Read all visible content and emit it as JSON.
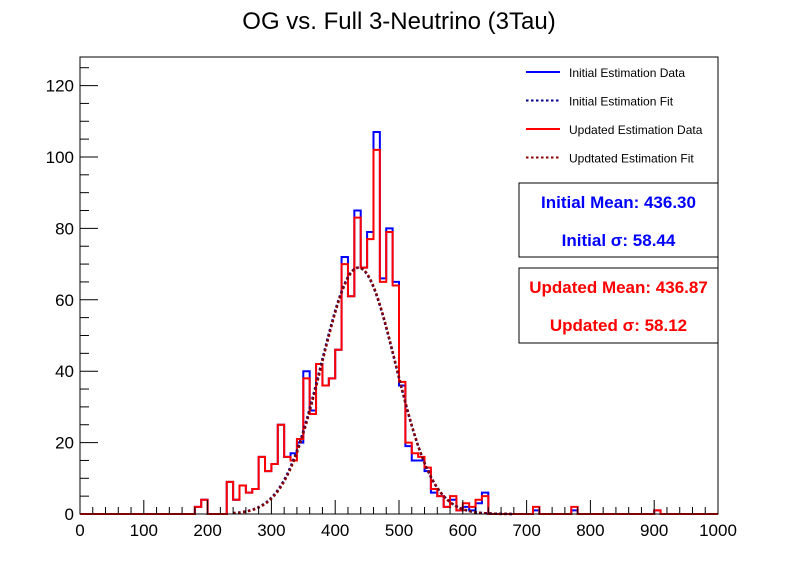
{
  "chart_data": {
    "type": "histogram-step",
    "title": "OG vs. Full 3-Neutrino (3Tau)",
    "xlim": [
      0,
      1000
    ],
    "ylim": [
      0,
      128
    ],
    "x_ticks": [
      0,
      100,
      200,
      300,
      400,
      500,
      600,
      700,
      800,
      900,
      1000
    ],
    "y_ticks": [
      0,
      20,
      40,
      60,
      80,
      100,
      120
    ],
    "bin_width": 10,
    "legend_position": "top-right",
    "legend": [
      {
        "label": "Initial Estimation Data",
        "color": "#0000ff",
        "style": "solid"
      },
      {
        "label": "Initial Estimation Fit",
        "color": "#00008b",
        "style": "dotted"
      },
      {
        "label": "Updated Estimation Data",
        "color": "#ff0000",
        "style": "solid"
      },
      {
        "label": "Updtated Estimation Fit",
        "color": "#8b0000",
        "style": "dotted"
      }
    ],
    "series": [
      {
        "name": "Initial Estimation Data",
        "color": "#0000ff",
        "bins": [
          [
            180,
            2
          ],
          [
            190,
            4
          ],
          [
            200,
            0
          ],
          [
            210,
            0
          ],
          [
            220,
            0
          ],
          [
            230,
            9
          ],
          [
            240,
            4
          ],
          [
            250,
            8
          ],
          [
            260,
            6
          ],
          [
            270,
            7
          ],
          [
            280,
            16
          ],
          [
            290,
            12
          ],
          [
            300,
            14
          ],
          [
            310,
            25
          ],
          [
            320,
            16
          ],
          [
            330,
            17
          ],
          [
            340,
            20
          ],
          [
            350,
            40
          ],
          [
            360,
            29
          ],
          [
            370,
            42
          ],
          [
            380,
            36
          ],
          [
            390,
            38
          ],
          [
            400,
            46
          ],
          [
            410,
            72
          ],
          [
            420,
            61
          ],
          [
            430,
            85
          ],
          [
            440,
            69
          ],
          [
            450,
            79
          ],
          [
            460,
            107
          ],
          [
            470,
            66
          ],
          [
            480,
            80
          ],
          [
            490,
            65
          ],
          [
            500,
            36
          ],
          [
            510,
            19
          ],
          [
            520,
            15
          ],
          [
            530,
            15
          ],
          [
            540,
            12
          ],
          [
            550,
            6
          ],
          [
            560,
            5
          ],
          [
            570,
            2
          ],
          [
            580,
            4
          ],
          [
            590,
            1
          ],
          [
            600,
            2
          ],
          [
            610,
            1
          ],
          [
            620,
            3
          ],
          [
            630,
            6
          ],
          [
            640,
            0
          ],
          [
            650,
            0
          ],
          [
            660,
            0
          ],
          [
            670,
            0
          ],
          [
            680,
            0
          ],
          [
            690,
            0
          ],
          [
            700,
            0
          ],
          [
            710,
            1
          ],
          [
            720,
            0
          ],
          [
            770,
            1
          ],
          [
            780,
            0
          ],
          [
            900,
            1
          ],
          [
            910,
            0
          ]
        ]
      },
      {
        "name": "Updated Estimation Data",
        "color": "#ff0000",
        "bins": [
          [
            180,
            2
          ],
          [
            190,
            4
          ],
          [
            200,
            0
          ],
          [
            210,
            0
          ],
          [
            220,
            0
          ],
          [
            230,
            9
          ],
          [
            240,
            4
          ],
          [
            250,
            8
          ],
          [
            260,
            6
          ],
          [
            270,
            7
          ],
          [
            280,
            16
          ],
          [
            290,
            12
          ],
          [
            300,
            14
          ],
          [
            310,
            25
          ],
          [
            320,
            16
          ],
          [
            330,
            15
          ],
          [
            340,
            21
          ],
          [
            350,
            38
          ],
          [
            360,
            28
          ],
          [
            370,
            42
          ],
          [
            380,
            36
          ],
          [
            390,
            38
          ],
          [
            400,
            46
          ],
          [
            410,
            70
          ],
          [
            420,
            61
          ],
          [
            430,
            83
          ],
          [
            440,
            69
          ],
          [
            450,
            77
          ],
          [
            460,
            102
          ],
          [
            470,
            65
          ],
          [
            480,
            79
          ],
          [
            490,
            64
          ],
          [
            500,
            37
          ],
          [
            510,
            20
          ],
          [
            520,
            17
          ],
          [
            530,
            16
          ],
          [
            540,
            13
          ],
          [
            550,
            7
          ],
          [
            560,
            5
          ],
          [
            570,
            2
          ],
          [
            580,
            5
          ],
          [
            590,
            1
          ],
          [
            600,
            3
          ],
          [
            610,
            2
          ],
          [
            620,
            4
          ],
          [
            630,
            5
          ],
          [
            640,
            0
          ],
          [
            650,
            0
          ],
          [
            660,
            0
          ],
          [
            670,
            0
          ],
          [
            680,
            0
          ],
          [
            690,
            0
          ],
          [
            700,
            0
          ],
          [
            710,
            2
          ],
          [
            720,
            0
          ],
          [
            770,
            2
          ],
          [
            780,
            0
          ],
          [
            900,
            1
          ],
          [
            910,
            0
          ]
        ]
      }
    ],
    "fits": [
      {
        "name": "Initial Estimation Fit",
        "color": "#00008b",
        "mean": 436.3,
        "sigma": 58.44,
        "amplitude": 69
      },
      {
        "name": "Updtated Estimation Fit",
        "color": "#8b0000",
        "mean": 436.87,
        "sigma": 58.12,
        "amplitude": 69
      }
    ],
    "stats_boxes": [
      {
        "lines": [
          "Initial Mean: 436.30",
          "Initial σ: 58.44"
        ],
        "color": "#0000ff"
      },
      {
        "lines": [
          "Updated Mean: 436.87",
          "Updated σ: 58.12"
        ],
        "color": "#ff0000"
      }
    ]
  }
}
